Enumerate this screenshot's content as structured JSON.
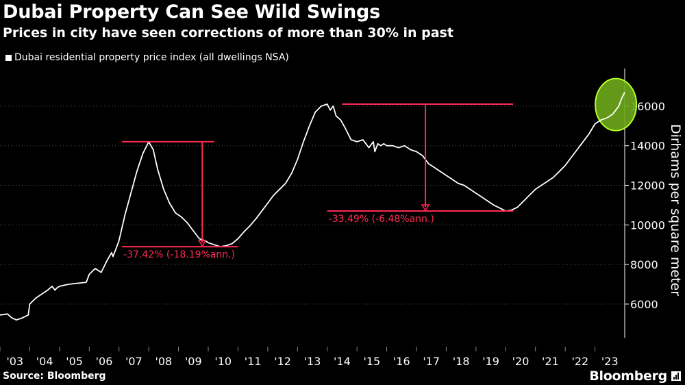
{
  "header": {
    "title": "Dubai Property Can See Wild Swings",
    "subtitle": "Prices in city have seen corrections of more than 30% in past"
  },
  "footer": {
    "source": "Source: Bloomberg",
    "brand": "Bloomberg"
  },
  "colors": {
    "background": "#000000",
    "line": "#ffffff",
    "annotation": "#ff2a55",
    "highlight_fill": "#6ea81c",
    "highlight_stroke": "#b4ff2a",
    "grid": "#555555"
  },
  "chart_data": {
    "type": "line",
    "title": "Dubai Property Can See Wild Swings",
    "subtitle": "Prices in city have seen corrections of more than 30% in past",
    "legend": [
      "Dubai residential property price index (all dwellings NSA)"
    ],
    "legend_position": "top-left",
    "ylabel": "Dirhams per square meter",
    "y_axis_side": "right",
    "ylim": [
      4300,
      17900
    ],
    "xlim": [
      2003.0,
      2024.0
    ],
    "grid": "horizontal dotted",
    "y_ticks": [
      6000,
      8000,
      10000,
      12000,
      14000,
      16000
    ],
    "x_ticks": [
      2003,
      2004,
      2005,
      2006,
      2007,
      2008,
      2009,
      2010,
      2011,
      2012,
      2013,
      2014,
      2015,
      2016,
      2017,
      2018,
      2019,
      2020,
      2021,
      2022,
      2023
    ],
    "x_tick_labels": [
      "'03",
      "'04",
      "'05",
      "'06",
      "'07",
      "'08",
      "'09",
      "'10",
      "'11",
      "'12",
      "'13",
      "'14",
      "'15",
      "'16",
      "'17",
      "'18",
      "'19",
      "'20",
      "'21",
      "'22",
      "'23"
    ],
    "series": [
      {
        "name": "Dubai residential property price index (all dwellings NSA)",
        "x": [
          2003.0,
          2003.25,
          2003.4,
          2003.55,
          2003.75,
          2003.95,
          2004.0,
          2004.2,
          2004.4,
          2004.6,
          2004.75,
          2004.85,
          2004.9,
          2005.0,
          2005.3,
          2005.6,
          2005.9,
          2006.0,
          2006.2,
          2006.4,
          2006.6,
          2006.75,
          2006.8,
          2006.9,
          2007.0,
          2007.2,
          2007.4,
          2007.6,
          2007.8,
          2008.0,
          2008.15,
          2008.3,
          2008.5,
          2008.7,
          2008.9,
          2009.1,
          2009.3,
          2009.5,
          2009.7,
          2009.9,
          2010.0,
          2010.2,
          2010.4,
          2010.6,
          2010.8,
          2011.0,
          2011.2,
          2011.4,
          2011.6,
          2011.8,
          2012.0,
          2012.2,
          2012.4,
          2012.6,
          2012.8,
          2013.0,
          2013.2,
          2013.4,
          2013.6,
          2013.8,
          2014.0,
          2014.1,
          2014.2,
          2014.3,
          2014.45,
          2014.6,
          2014.8,
          2015.0,
          2015.2,
          2015.4,
          2015.55,
          2015.6,
          2015.7,
          2015.8,
          2015.9,
          2016.0,
          2016.2,
          2016.4,
          2016.6,
          2016.8,
          2017.0,
          2017.2,
          2017.4,
          2017.6,
          2017.8,
          2018.0,
          2018.2,
          2018.4,
          2018.6,
          2018.8,
          2019.0,
          2019.2,
          2019.4,
          2019.6,
          2019.8,
          2020.0,
          2020.2,
          2020.4,
          2020.6,
          2020.8,
          2021.0,
          2021.2,
          2021.4,
          2021.6,
          2021.8,
          2022.0,
          2022.2,
          2022.4,
          2022.6,
          2022.8,
          2023.0,
          2023.2,
          2023.4,
          2023.6,
          2023.8,
          2023.9,
          2024.0
        ],
        "values": [
          5450,
          5500,
          5300,
          5200,
          5300,
          5450,
          6000,
          6300,
          6500,
          6700,
          6900,
          6700,
          6800,
          6900,
          7000,
          7050,
          7100,
          7500,
          7800,
          7600,
          8200,
          8600,
          8400,
          8800,
          9200,
          10500,
          11600,
          12700,
          13600,
          14200,
          13800,
          12800,
          11800,
          11100,
          10600,
          10400,
          10100,
          9700,
          9300,
          9200,
          9100,
          9000,
          8900,
          8950,
          9050,
          9300,
          9650,
          9950,
          10300,
          10700,
          11100,
          11500,
          11800,
          12100,
          12600,
          13300,
          14200,
          15000,
          15700,
          16000,
          16100,
          15800,
          16000,
          15500,
          15300,
          14900,
          14300,
          14200,
          14300,
          13900,
          14200,
          13700,
          14100,
          14000,
          14100,
          14000,
          14000,
          13900,
          14000,
          13800,
          13700,
          13500,
          13100,
          12900,
          12700,
          12500,
          12300,
          12100,
          12000,
          11800,
          11600,
          11400,
          11200,
          11000,
          10850,
          10700,
          10750,
          10900,
          11200,
          11500,
          11800,
          12000,
          12200,
          12400,
          12700,
          13000,
          13400,
          13800,
          14200,
          14600,
          15100,
          15300,
          15400,
          15600,
          16000,
          16400,
          16700
        ]
      }
    ],
    "annotations": [
      {
        "label": "-37.42% (-18.19%ann.)",
        "peak_x": 2008.05,
        "peak_y": 14200,
        "trough_x": 2009.8,
        "trough_y": 8900,
        "line_x_start": 2007.1,
        "line_x_end": 2010.2,
        "bottom_line_x_start": 2007.1,
        "bottom_line_x_end": 2011.0
      },
      {
        "label": "-33.49% (-6.48%ann.)",
        "peak_x": 2017.3,
        "peak_y": 16100,
        "trough_x": 2017.3,
        "trough_y": 10700,
        "line_x_start": 2014.5,
        "line_x_end": 2020.25,
        "bottom_line_x_start": 2014.0,
        "bottom_line_x_end": 2020.25
      }
    ],
    "highlight": {
      "x": 2023.75,
      "y": 15800,
      "shape": "ellipse",
      "description": "current surge"
    }
  }
}
